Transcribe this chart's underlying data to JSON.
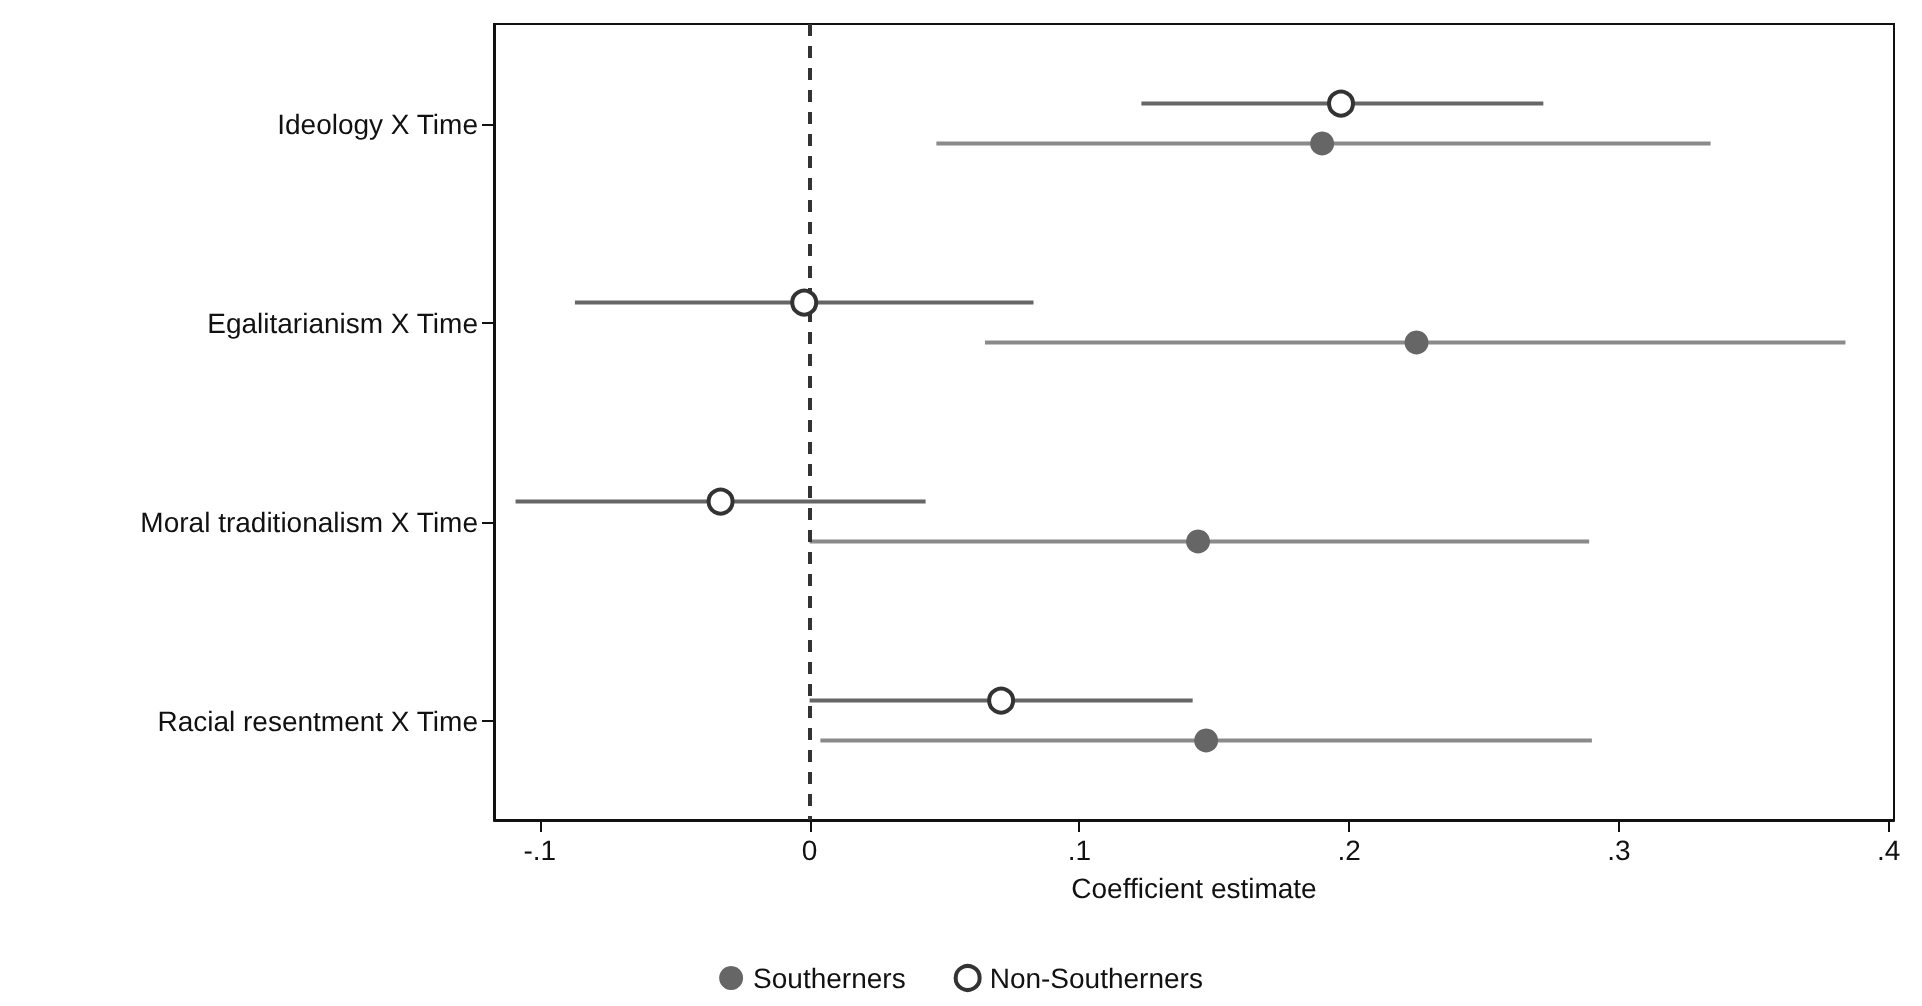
{
  "chart_data": {
    "type": "scatter",
    "orientation": "horizontal",
    "xlabel": "Coefficient estimate",
    "categories": [
      "Ideology X Time",
      "Egalitarianism X Time",
      "Moral traditionalism X Time",
      "Racial resentment X Time"
    ],
    "series": [
      {
        "name": "Southerners",
        "color": "#666666",
        "values": [
          0.19,
          0.225,
          0.144,
          0.147
        ],
        "errors": [
          [
            0.047,
            0.334
          ],
          [
            0.065,
            0.384
          ],
          [
            0.0,
            0.289
          ],
          [
            0.004,
            0.29
          ]
        ]
      },
      {
        "name": "Non-Southerners",
        "color": "#ffffff",
        "values": [
          0.197,
          -0.002,
          -0.033,
          0.071
        ],
        "errors": [
          [
            0.123,
            0.272
          ],
          [
            -0.087,
            0.083
          ],
          [
            -0.109,
            0.043
          ],
          [
            0.0,
            0.142
          ]
        ]
      }
    ],
    "xlim": [
      -0.117,
      0.402
    ],
    "xticks": [
      {
        "value": -0.1,
        "label": "-.1"
      },
      0,
      {
        "value": 0.1,
        "label": ".1"
      },
      {
        "value": 0.2,
        "label": ".2"
      },
      {
        "value": 0.3,
        "label": ".3"
      },
      {
        "value": 0.4,
        "label": ".4"
      }
    ],
    "ref_lines": [
      {
        "axis": "x",
        "value": 0,
        "line_style": "dashed",
        "color": "#333333"
      }
    ],
    "marker": "circle",
    "grid": false,
    "legend": "bottom"
  }
}
